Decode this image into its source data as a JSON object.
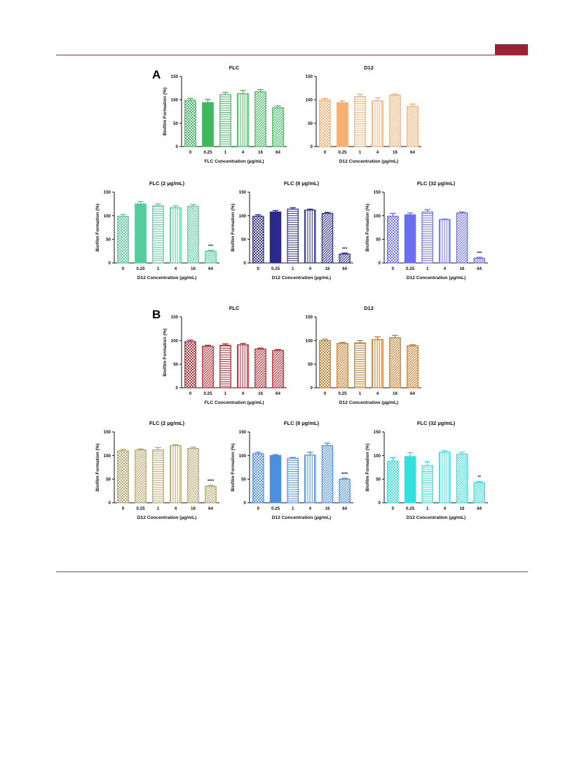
{
  "header": {
    "tab_color": "#9a2333",
    "rule_color": "#9c3a4a"
  },
  "panels": [
    {
      "letter": "A"
    },
    {
      "letter": "B"
    }
  ],
  "chart_data": [
    {
      "type": "bar",
      "panel": "A",
      "title": "FLC",
      "xlabel": "FLC Concentration (µg/mL)",
      "ylabel": "Biofilm Formation (%)",
      "ylim": [
        0,
        150
      ],
      "yticks": [
        0,
        50,
        100,
        150
      ],
      "categories": [
        "0",
        "0.25",
        "1",
        "4",
        "16",
        "64"
      ],
      "values": [
        99,
        94,
        111,
        113,
        117,
        83
      ],
      "errors": [
        4,
        7,
        5,
        7,
        5,
        4
      ],
      "significance": [
        "",
        "",
        "",
        "",
        "",
        ""
      ],
      "color": "#3fb95e",
      "patterns": [
        "check",
        "solid",
        "hlines",
        "vlines",
        "diag",
        "diag"
      ]
    },
    {
      "type": "bar",
      "panel": "A",
      "title": "D12",
      "xlabel": "D12 Concentration (µg/mL)",
      "ylabel": "",
      "ylim": [
        0,
        150
      ],
      "yticks": [
        0,
        50,
        100,
        150
      ],
      "categories": [
        "0",
        "0.25",
        "1",
        "4",
        "16",
        "64"
      ],
      "values": [
        100,
        94,
        107,
        98,
        110,
        86
      ],
      "errors": [
        3,
        4,
        5,
        6,
        2,
        5
      ],
      "significance": [
        "",
        "",
        "",
        "",
        "",
        ""
      ],
      "color": "#f7b074",
      "patterns": [
        "check",
        "solid",
        "hlines",
        "vlines",
        "diag",
        "diag"
      ]
    },
    {
      "type": "bar",
      "panel": "A",
      "title": "FLC (2 µg/mL)",
      "xlabel": "D12 Concentration (µg/mL)",
      "ylabel": "Biofilm Formation (%)",
      "ylim": [
        0,
        150
      ],
      "yticks": [
        0,
        50,
        100,
        150
      ],
      "categories": [
        "0",
        "0.25",
        "1",
        "4",
        "16",
        "64"
      ],
      "values": [
        99,
        125,
        121,
        117,
        120,
        25
      ],
      "errors": [
        4,
        5,
        4,
        4,
        4,
        2
      ],
      "significance": [
        "",
        "",
        "",
        "",
        "",
        "***"
      ],
      "color": "#54cc9c",
      "patterns": [
        "check",
        "solid",
        "hlines",
        "vlines",
        "diag",
        "diag"
      ]
    },
    {
      "type": "bar",
      "panel": "A",
      "title": "FLC (8 µg/mL)",
      "xlabel": "D12 Concentration (µg/mL)",
      "ylabel": "Biofilm Formation (%)",
      "ylim": [
        0,
        150
      ],
      "yticks": [
        0,
        50,
        100,
        150
      ],
      "categories": [
        "0",
        "0.25",
        "1",
        "4",
        "16",
        "64"
      ],
      "values": [
        99,
        108,
        114,
        112,
        105,
        19
      ],
      "errors": [
        3,
        3,
        3,
        2,
        2,
        2
      ],
      "significance": [
        "",
        "",
        "",
        "",
        "",
        "***"
      ],
      "color": "#2b2a8c",
      "patterns": [
        "check",
        "solid",
        "hlines",
        "vlines",
        "diag",
        "diag"
      ]
    },
    {
      "type": "bar",
      "panel": "A",
      "title": "FLC (32 µg/mL)",
      "xlabel": "D12 Concentration (µg/mL)",
      "ylabel": "Biofilm Formation (%)",
      "ylim": [
        0,
        150
      ],
      "yticks": [
        0,
        50,
        100,
        150
      ],
      "categories": [
        "0",
        "0.25",
        "1",
        "4",
        "16",
        "64"
      ],
      "values": [
        99,
        102,
        108,
        92,
        106,
        10
      ],
      "errors": [
        6,
        4,
        5,
        1,
        2,
        2
      ],
      "significance": [
        "",
        "",
        "",
        "",
        "",
        "***"
      ],
      "color": "#6a6ef0",
      "patterns": [
        "check",
        "solid",
        "hlines",
        "vlines",
        "diag",
        "diag"
      ]
    },
    {
      "type": "bar",
      "panel": "B",
      "title": "FLC",
      "xlabel": "FLC Concentration (µg/mL)",
      "ylabel": "Biofilm Formation (%)",
      "ylim": [
        0,
        150
      ],
      "yticks": [
        0,
        50,
        100,
        150
      ],
      "categories": [
        "0",
        "0.25",
        "1",
        "4",
        "16",
        "64"
      ],
      "values": [
        98,
        88,
        90,
        91,
        82,
        79
      ],
      "errors": [
        3,
        2,
        3,
        3,
        2,
        2
      ],
      "significance": [
        "",
        "",
        "",
        "",
        "",
        ""
      ],
      "color": "#b3262e",
      "patterns": [
        "check",
        "diag",
        "hlines",
        "vlines",
        "diag",
        "diag"
      ]
    },
    {
      "type": "bar",
      "panel": "B",
      "title": "D12",
      "xlabel": "D12 Concentration (µg/mL)",
      "ylabel": "",
      "ylim": [
        0,
        150
      ],
      "yticks": [
        0,
        50,
        100,
        150
      ],
      "categories": [
        "0",
        "0.25",
        "1",
        "4",
        "16",
        "64"
      ],
      "values": [
        100,
        94,
        95,
        102,
        106,
        89
      ],
      "errors": [
        3,
        2,
        5,
        6,
        5,
        2
      ],
      "significance": [
        "",
        "",
        "",
        "",
        "",
        ""
      ],
      "color": "#c77a2a",
      "patterns": [
        "check",
        "diag",
        "hlines",
        "vlines",
        "diag",
        "diag"
      ]
    },
    {
      "type": "bar",
      "panel": "B",
      "title": "FLC (2 µg/mL)",
      "xlabel": "D12 Concentration (µg/mL)",
      "ylabel": "Biofilm Formation (%)",
      "ylim": [
        0,
        150
      ],
      "yticks": [
        0,
        50,
        100,
        150
      ],
      "categories": [
        "0",
        "0.25",
        "1",
        "4",
        "16",
        "64"
      ],
      "values": [
        110,
        112,
        112,
        121,
        115,
        35
      ],
      "errors": [
        3,
        2,
        5,
        2,
        3,
        2
      ],
      "significance": [
        "",
        "",
        "",
        "",
        "",
        "****"
      ],
      "color": "#b5a46a",
      "patterns": [
        "check",
        "diag",
        "hlines",
        "vlines",
        "diag",
        "diag"
      ]
    },
    {
      "type": "bar",
      "panel": "B",
      "title": "FLC (8 µg/mL)",
      "xlabel": "D12 Concentration (µg/mL)",
      "ylabel": "Biofilm Formation (%)",
      "ylim": [
        0,
        150
      ],
      "yticks": [
        0,
        50,
        100,
        150
      ],
      "categories": [
        "0",
        "0.25",
        "1",
        "4",
        "16",
        "64"
      ],
      "values": [
        104,
        100,
        94,
        101,
        121,
        50
      ],
      "errors": [
        3,
        2,
        2,
        6,
        5,
        2
      ],
      "significance": [
        "",
        "",
        "",
        "",
        "",
        "****"
      ],
      "color": "#4a8fe0",
      "patterns": [
        "check",
        "solid",
        "hlines",
        "vlines",
        "diag",
        "diag"
      ]
    },
    {
      "type": "bar",
      "panel": "B",
      "title": "FLC (32 µg/mL)",
      "xlabel": "D12 Concentration (µg/mL)",
      "ylabel": "Biofilm Formation (%)",
      "ylim": [
        0,
        150
      ],
      "yticks": [
        0,
        50,
        100,
        150
      ],
      "categories": [
        "0",
        "0.25",
        "1",
        "4",
        "16",
        "64"
      ],
      "values": [
        88,
        98,
        79,
        107,
        103,
        43
      ],
      "errors": [
        8,
        8,
        8,
        3,
        4,
        2
      ],
      "significance": [
        "",
        "",
        "",
        "",
        "",
        "**"
      ],
      "color": "#33e0e0",
      "patterns": [
        "check",
        "solid",
        "hlines",
        "vlines",
        "diag",
        "diag"
      ]
    }
  ]
}
